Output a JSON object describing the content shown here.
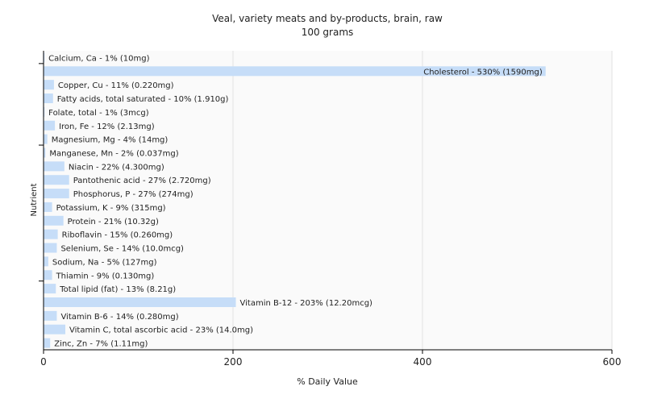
{
  "chart_data": {
    "type": "bar",
    "orientation": "horizontal",
    "title": "Veal, variety meats and by-products, brain, raw",
    "subtitle": "100 grams",
    "xlabel": "% Daily Value",
    "ylabel": "Nutrient",
    "xlim": [
      0,
      600
    ],
    "xticks": [
      0,
      200,
      400,
      600
    ],
    "grid": true,
    "bar_color": "#c6ddf8",
    "categories": [
      "Calcium, Ca",
      "Cholesterol",
      "Copper, Cu",
      "Fatty acids, total saturated",
      "Folate, total",
      "Iron, Fe",
      "Magnesium, Mg",
      "Manganese, Mn",
      "Niacin",
      "Pantothenic acid",
      "Phosphorus, P",
      "Potassium, K",
      "Protein",
      "Riboflavin",
      "Selenium, Se",
      "Sodium, Na",
      "Thiamin",
      "Total lipid (fat)",
      "Vitamin B-12",
      "Vitamin B-6",
      "Vitamin C, total ascorbic acid",
      "Zinc, Zn"
    ],
    "values": [
      1,
      530,
      11,
      10,
      1,
      12,
      4,
      2,
      22,
      27,
      27,
      9,
      21,
      15,
      14,
      5,
      9,
      13,
      203,
      14,
      23,
      7
    ],
    "labels": [
      "Calcium, Ca - 1% (10mg)",
      "Cholesterol - 530% (1590mg)",
      "Copper, Cu - 11% (0.220mg)",
      "Fatty acids, total saturated - 10% (1.910g)",
      "Folate, total - 1% (3mcg)",
      "Iron, Fe - 12% (2.13mg)",
      "Magnesium, Mg - 4% (14mg)",
      "Manganese, Mn - 2% (0.037mg)",
      "Niacin - 22% (4.300mg)",
      "Pantothenic acid - 27% (2.720mg)",
      "Phosphorus, P - 27% (274mg)",
      "Potassium, K - 9% (315mg)",
      "Protein - 21% (10.32g)",
      "Riboflavin - 15% (0.260mg)",
      "Selenium, Se - 14% (10.0mcg)",
      "Sodium, Na - 5% (127mg)",
      "Thiamin - 9% (0.130mg)",
      "Total lipid (fat) - 13% (8.21g)",
      "Vitamin B-12 - 203% (12.20mcg)",
      "Vitamin B-6 - 14% (0.280mg)",
      "Vitamin C, total ascorbic acid - 23% (14.0mg)",
      "Zinc, Zn - 7% (1.11mg)"
    ]
  }
}
